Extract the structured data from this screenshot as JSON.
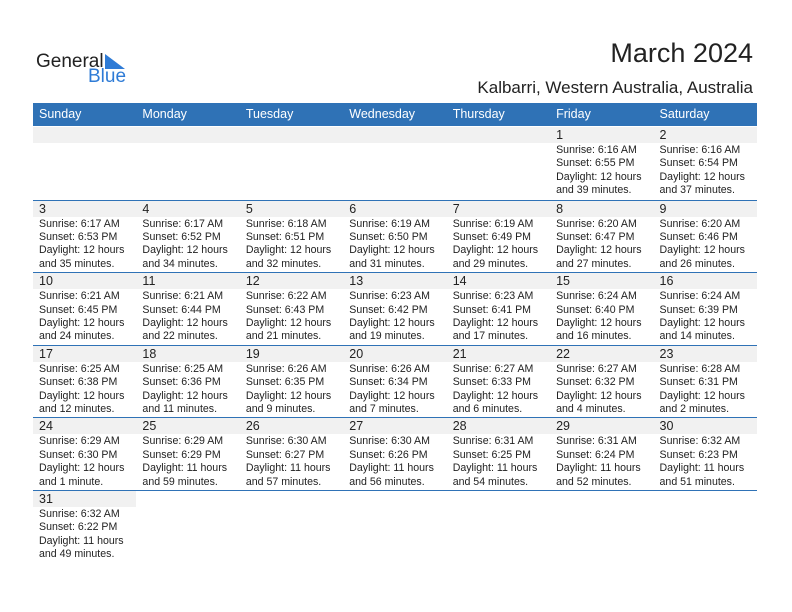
{
  "logo": {
    "text_general": "General",
    "text_blue": "Blue"
  },
  "title": "March 2024",
  "location": "Kalbarri, Western Australia, Australia",
  "weekdays": [
    "Sunday",
    "Monday",
    "Tuesday",
    "Wednesday",
    "Thursday",
    "Friday",
    "Saturday"
  ],
  "colors": {
    "header_bg": "#2f72b6",
    "day_band": "#f1f1f1",
    "logo_blue": "#2e7bd6"
  },
  "first_weekday_index": 5,
  "days": [
    {
      "day": "1",
      "sunrise": "Sunrise: 6:16 AM",
      "sunset": "Sunset: 6:55 PM",
      "daylight1": "Daylight: 12 hours",
      "daylight2": "and 39 minutes."
    },
    {
      "day": "2",
      "sunrise": "Sunrise: 6:16 AM",
      "sunset": "Sunset: 6:54 PM",
      "daylight1": "Daylight: 12 hours",
      "daylight2": "and 37 minutes."
    },
    {
      "day": "3",
      "sunrise": "Sunrise: 6:17 AM",
      "sunset": "Sunset: 6:53 PM",
      "daylight1": "Daylight: 12 hours",
      "daylight2": "and 35 minutes."
    },
    {
      "day": "4",
      "sunrise": "Sunrise: 6:17 AM",
      "sunset": "Sunset: 6:52 PM",
      "daylight1": "Daylight: 12 hours",
      "daylight2": "and 34 minutes."
    },
    {
      "day": "5",
      "sunrise": "Sunrise: 6:18 AM",
      "sunset": "Sunset: 6:51 PM",
      "daylight1": "Daylight: 12 hours",
      "daylight2": "and 32 minutes."
    },
    {
      "day": "6",
      "sunrise": "Sunrise: 6:19 AM",
      "sunset": "Sunset: 6:50 PM",
      "daylight1": "Daylight: 12 hours",
      "daylight2": "and 31 minutes."
    },
    {
      "day": "7",
      "sunrise": "Sunrise: 6:19 AM",
      "sunset": "Sunset: 6:49 PM",
      "daylight1": "Daylight: 12 hours",
      "daylight2": "and 29 minutes."
    },
    {
      "day": "8",
      "sunrise": "Sunrise: 6:20 AM",
      "sunset": "Sunset: 6:47 PM",
      "daylight1": "Daylight: 12 hours",
      "daylight2": "and 27 minutes."
    },
    {
      "day": "9",
      "sunrise": "Sunrise: 6:20 AM",
      "sunset": "Sunset: 6:46 PM",
      "daylight1": "Daylight: 12 hours",
      "daylight2": "and 26 minutes."
    },
    {
      "day": "10",
      "sunrise": "Sunrise: 6:21 AM",
      "sunset": "Sunset: 6:45 PM",
      "daylight1": "Daylight: 12 hours",
      "daylight2": "and 24 minutes."
    },
    {
      "day": "11",
      "sunrise": "Sunrise: 6:21 AM",
      "sunset": "Sunset: 6:44 PM",
      "daylight1": "Daylight: 12 hours",
      "daylight2": "and 22 minutes."
    },
    {
      "day": "12",
      "sunrise": "Sunrise: 6:22 AM",
      "sunset": "Sunset: 6:43 PM",
      "daylight1": "Daylight: 12 hours",
      "daylight2": "and 21 minutes."
    },
    {
      "day": "13",
      "sunrise": "Sunrise: 6:23 AM",
      "sunset": "Sunset: 6:42 PM",
      "daylight1": "Daylight: 12 hours",
      "daylight2": "and 19 minutes."
    },
    {
      "day": "14",
      "sunrise": "Sunrise: 6:23 AM",
      "sunset": "Sunset: 6:41 PM",
      "daylight1": "Daylight: 12 hours",
      "daylight2": "and 17 minutes."
    },
    {
      "day": "15",
      "sunrise": "Sunrise: 6:24 AM",
      "sunset": "Sunset: 6:40 PM",
      "daylight1": "Daylight: 12 hours",
      "daylight2": "and 16 minutes."
    },
    {
      "day": "16",
      "sunrise": "Sunrise: 6:24 AM",
      "sunset": "Sunset: 6:39 PM",
      "daylight1": "Daylight: 12 hours",
      "daylight2": "and 14 minutes."
    },
    {
      "day": "17",
      "sunrise": "Sunrise: 6:25 AM",
      "sunset": "Sunset: 6:38 PM",
      "daylight1": "Daylight: 12 hours",
      "daylight2": "and 12 minutes."
    },
    {
      "day": "18",
      "sunrise": "Sunrise: 6:25 AM",
      "sunset": "Sunset: 6:36 PM",
      "daylight1": "Daylight: 12 hours",
      "daylight2": "and 11 minutes."
    },
    {
      "day": "19",
      "sunrise": "Sunrise: 6:26 AM",
      "sunset": "Sunset: 6:35 PM",
      "daylight1": "Daylight: 12 hours",
      "daylight2": "and 9 minutes."
    },
    {
      "day": "20",
      "sunrise": "Sunrise: 6:26 AM",
      "sunset": "Sunset: 6:34 PM",
      "daylight1": "Daylight: 12 hours",
      "daylight2": "and 7 minutes."
    },
    {
      "day": "21",
      "sunrise": "Sunrise: 6:27 AM",
      "sunset": "Sunset: 6:33 PM",
      "daylight1": "Daylight: 12 hours",
      "daylight2": "and 6 minutes."
    },
    {
      "day": "22",
      "sunrise": "Sunrise: 6:27 AM",
      "sunset": "Sunset: 6:32 PM",
      "daylight1": "Daylight: 12 hours",
      "daylight2": "and 4 minutes."
    },
    {
      "day": "23",
      "sunrise": "Sunrise: 6:28 AM",
      "sunset": "Sunset: 6:31 PM",
      "daylight1": "Daylight: 12 hours",
      "daylight2": "and 2 minutes."
    },
    {
      "day": "24",
      "sunrise": "Sunrise: 6:29 AM",
      "sunset": "Sunset: 6:30 PM",
      "daylight1": "Daylight: 12 hours",
      "daylight2": "and 1 minute."
    },
    {
      "day": "25",
      "sunrise": "Sunrise: 6:29 AM",
      "sunset": "Sunset: 6:29 PM",
      "daylight1": "Daylight: 11 hours",
      "daylight2": "and 59 minutes."
    },
    {
      "day": "26",
      "sunrise": "Sunrise: 6:30 AM",
      "sunset": "Sunset: 6:27 PM",
      "daylight1": "Daylight: 11 hours",
      "daylight2": "and 57 minutes."
    },
    {
      "day": "27",
      "sunrise": "Sunrise: 6:30 AM",
      "sunset": "Sunset: 6:26 PM",
      "daylight1": "Daylight: 11 hours",
      "daylight2": "and 56 minutes."
    },
    {
      "day": "28",
      "sunrise": "Sunrise: 6:31 AM",
      "sunset": "Sunset: 6:25 PM",
      "daylight1": "Daylight: 11 hours",
      "daylight2": "and 54 minutes."
    },
    {
      "day": "29",
      "sunrise": "Sunrise: 6:31 AM",
      "sunset": "Sunset: 6:24 PM",
      "daylight1": "Daylight: 11 hours",
      "daylight2": "and 52 minutes."
    },
    {
      "day": "30",
      "sunrise": "Sunrise: 6:32 AM",
      "sunset": "Sunset: 6:23 PM",
      "daylight1": "Daylight: 11 hours",
      "daylight2": "and 51 minutes."
    },
    {
      "day": "31",
      "sunrise": "Sunrise: 6:32 AM",
      "sunset": "Sunset: 6:22 PM",
      "daylight1": "Daylight: 11 hours",
      "daylight2": "and 49 minutes."
    }
  ]
}
